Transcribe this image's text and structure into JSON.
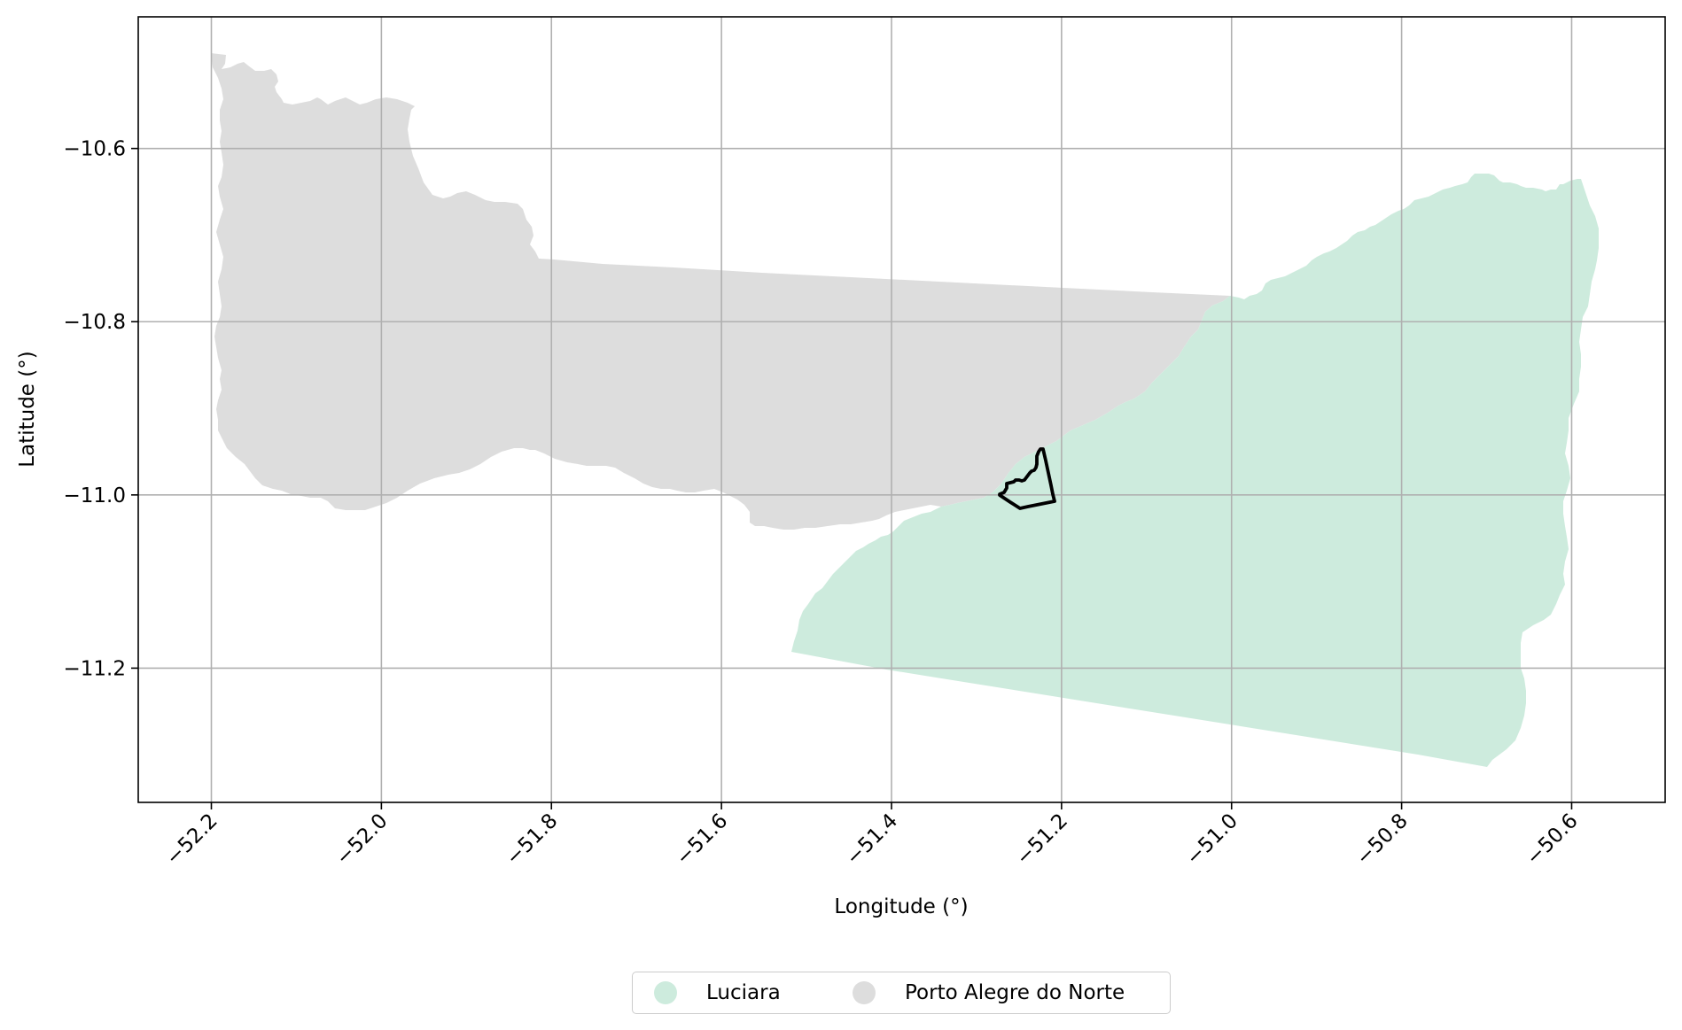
{
  "map": {
    "xlabel": "Longitude (°)",
    "ylabel": "Latitude (°)",
    "x_ticks": [
      "−52.2",
      "−52.0",
      "−51.8",
      "−51.6",
      "−51.4",
      "−51.2",
      "−51.0",
      "−50.8",
      "−50.6"
    ],
    "y_ticks": [
      "−10.6",
      "−10.8",
      "−11.0",
      "−11.2"
    ],
    "xlim": [
      -52.286,
      -50.49
    ],
    "ylim": [
      -11.355,
      -10.448
    ],
    "grid": true,
    "legend_placement": "bottom-center",
    "regions": [
      {
        "name": "Luciara",
        "color": "#cdebdd"
      },
      {
        "name": "Porto Alegre do Norte",
        "color": "#dddddd"
      }
    ],
    "highlight": {
      "outline_color": "#000000"
    }
  },
  "legend": {
    "items": [
      {
        "label": "Luciara",
        "color": "#cdebdd"
      },
      {
        "label": "Porto Alegre do Norte",
        "color": "#dddddd"
      }
    ]
  }
}
